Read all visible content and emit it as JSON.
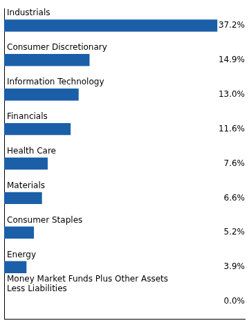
{
  "chart_data": {
    "type": "bar",
    "orientation": "horizontal",
    "categories": [
      "Industrials",
      "Consumer Discretionary",
      "Information Technology",
      "Financials",
      "Health Care",
      "Materials",
      "Consumer Staples",
      "Energy",
      "Money Market Funds Plus Other Assets\nLess Liabilities"
    ],
    "values": [
      37.2,
      14.9,
      13.0,
      11.6,
      7.6,
      6.6,
      5.2,
      3.9,
      0.0
    ],
    "value_labels": [
      "37.2%",
      "14.9%",
      "13.0%",
      "11.6%",
      "7.6%",
      "6.6%",
      "5.2%",
      "3.9%",
      "0.0%"
    ],
    "data_labels": true,
    "color": "#1a5fa8",
    "xlim": [
      0,
      42
    ],
    "tick_labels": false,
    "grid": false
  }
}
